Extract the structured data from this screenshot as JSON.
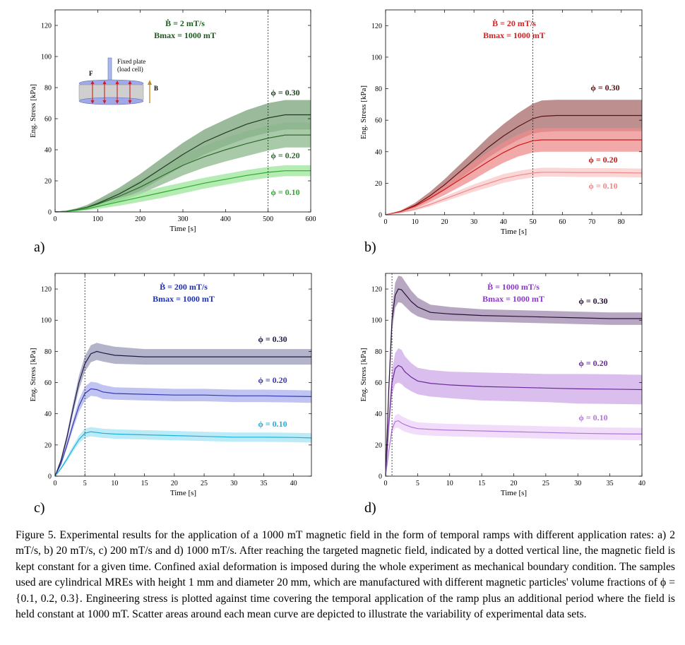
{
  "caption": "Figure 5.  Experimental results for the application of a 1000 mT magnetic field in the form of temporal ramps with different application rates: a) 2 mT/s, b) 20 mT/s, c) 200 mT/s and d) 1000 mT/s. After reaching the targeted magnetic field, indicated by a dotted vertical line, the magnetic field is kept constant for a given time. Confined axial deformation is imposed during the whole experiment as mechanical boundary condition.  The samples used are cylindrical MREs with height 1 mm and diameter 20 mm, which are manufactured with different magnetic particles' volume fractions of ϕ = {0.1, 0.2, 0.3}. Engineering stress is plotted against time covering the temporal application of the ramp plus an additional period where the field is held constant at 1000 mT. Scatter areas around each mean curve are depicted to illustrate the variability of experimental data sets.",
  "inset": {
    "line1": "Fixed plate",
    "line2": "(load cell)",
    "force_label": "F",
    "field_label": "B"
  },
  "chart_data": [
    {
      "panel": "a)",
      "type": "line",
      "rate_label": "Ḃ = 2 mT/s",
      "bmax_label": "Bmax = 1000 mT",
      "xlabel": "Time [s]",
      "ylabel": "Eng. Stress [kPa]",
      "xlim": [
        0,
        600
      ],
      "ylim": [
        0,
        130
      ],
      "xticks": [
        0,
        100,
        200,
        300,
        400,
        500,
        600
      ],
      "yticks": [
        0,
        20,
        40,
        60,
        80,
        100,
        120
      ],
      "ramp_end": 500,
      "annotation_color": "#1e5a1e",
      "series": [
        {
          "name": "ϕ = 0.30",
          "line_color": "#1f3d1f",
          "band_color": "#7aa27a",
          "x": [
            0,
            25,
            50,
            75,
            100,
            150,
            200,
            250,
            300,
            350,
            400,
            450,
            500,
            540,
            580,
            600
          ],
          "y": [
            0,
            0.4,
            1.5,
            3,
            5.5,
            11.5,
            19,
            28,
            37,
            45,
            51,
            56.5,
            60.5,
            62.5,
            62.5,
            62.5
          ],
          "spread": [
            0,
            0.3,
            0.8,
            1.5,
            2.5,
            4,
            5.5,
            6.5,
            7.5,
            8,
            8.5,
            9,
            9.5,
            9.5,
            9.5,
            9.5
          ]
        },
        {
          "name": "ϕ = 0.20",
          "line_color": "#2f6a2f",
          "band_color": "#8cb88c",
          "x": [
            0,
            25,
            50,
            75,
            100,
            150,
            200,
            250,
            300,
            350,
            400,
            450,
            500,
            540,
            580,
            600
          ],
          "y": [
            0,
            0.4,
            1.4,
            2.8,
            5,
            10,
            16,
            23,
            30,
            35.5,
            40,
            44,
            47.5,
            49.5,
            49.5,
            49.5
          ],
          "spread": [
            0,
            0.3,
            0.7,
            1.2,
            2,
            3.5,
            4.5,
            5.5,
            6.5,
            7,
            7.5,
            8,
            8,
            8,
            8,
            8
          ]
        },
        {
          "name": "ϕ = 0.10",
          "line_color": "#2faa2f",
          "band_color": "#9be59b",
          "x": [
            0,
            25,
            50,
            75,
            100,
            150,
            200,
            250,
            300,
            350,
            400,
            450,
            500,
            540,
            580,
            600
          ],
          "y": [
            0,
            0.3,
            1,
            2,
            3.5,
            6.5,
            9.5,
            12.5,
            15.5,
            18.5,
            21,
            23.5,
            25.5,
            26.5,
            26.5,
            26.5
          ],
          "spread": [
            0,
            0.2,
            0.5,
            1,
            1.5,
            2.5,
            3,
            3.5,
            3.5,
            3.5,
            3.5,
            3.5,
            3.5,
            3.5,
            3.5,
            3.5
          ]
        }
      ]
    },
    {
      "panel": "b)",
      "type": "line",
      "rate_label": "Ḃ = 20 mT/s",
      "bmax_label": "Bmax = 1000 mT",
      "xlabel": "Time [s]",
      "ylabel": "Eng. Stress [kPa]",
      "xlim": [
        0,
        87
      ],
      "ylim": [
        0,
        130
      ],
      "xticks": [
        0,
        10,
        20,
        30,
        40,
        50,
        60,
        70,
        80
      ],
      "yticks": [
        0,
        20,
        40,
        60,
        80,
        100,
        120
      ],
      "ramp_end": 50,
      "annotation_color": "#d42020",
      "series": [
        {
          "name": "ϕ = 0.30",
          "line_color": "#5a1414",
          "band_color": "#a86a6a",
          "x": [
            0,
            5,
            10,
            15,
            20,
            25,
            30,
            35,
            40,
            45,
            50,
            53,
            58,
            65,
            75,
            87
          ],
          "y": [
            0,
            2,
            6,
            12,
            19,
            27,
            35,
            43,
            50,
            56,
            61,
            62.5,
            63,
            63,
            63,
            63
          ],
          "spread": [
            0,
            0.6,
            1.5,
            2.5,
            3.5,
            4.5,
            5.5,
            6.5,
            7.5,
            8.5,
            9.5,
            10,
            10,
            10,
            10,
            10
          ]
        },
        {
          "name": "ϕ = 0.20",
          "line_color": "#cc1818",
          "band_color": "#ee8c8c",
          "x": [
            0,
            5,
            10,
            15,
            20,
            25,
            30,
            35,
            40,
            45,
            50,
            53,
            58,
            65,
            75,
            87
          ],
          "y": [
            0,
            2,
            5.5,
            10.5,
            16,
            22,
            28,
            34,
            39.5,
            44,
            47,
            47.5,
            47.5,
            47.5,
            47.5,
            47.5
          ],
          "spread": [
            0,
            0.6,
            1.5,
            2.5,
            3.5,
            4.5,
            5.5,
            6,
            6.5,
            7,
            7.5,
            7.5,
            7.5,
            7.5,
            7.5,
            7.5
          ]
        },
        {
          "name": "ϕ = 0.10",
          "line_color": "#ee8a8a",
          "band_color": "#f8c8c8",
          "x": [
            0,
            5,
            10,
            15,
            20,
            25,
            30,
            35,
            40,
            45,
            50,
            53,
            58,
            65,
            75,
            87
          ],
          "y": [
            0,
            1.5,
            3.5,
            6.5,
            10,
            13.5,
            17,
            20,
            23,
            25,
            26.5,
            27,
            27,
            26.8,
            26.8,
            26.5
          ],
          "spread": [
            0,
            0.4,
            0.8,
            1.2,
            1.6,
            2,
            2.3,
            2.6,
            2.8,
            2.8,
            2.8,
            2.8,
            2.8,
            2.8,
            2.8,
            2.8
          ]
        }
      ]
    },
    {
      "panel": "c)",
      "type": "line",
      "rate_label": "Ḃ = 200 mT/s",
      "bmax_label": "Bmax = 1000 mT",
      "xlabel": "Time [s]",
      "ylabel": "Eng. Stress [kPa]",
      "xlim": [
        0,
        43
      ],
      "ylim": [
        0,
        130
      ],
      "xticks": [
        0,
        5,
        10,
        15,
        20,
        25,
        30,
        35,
        40
      ],
      "yticks": [
        0,
        20,
        40,
        60,
        80,
        100,
        120
      ],
      "ramp_end": 5,
      "annotation_color": "#2030b0",
      "series": [
        {
          "name": "ϕ = 0.30",
          "line_color": "#1a1a4a",
          "band_color": "#9a9ab8",
          "x": [
            0,
            1,
            2,
            3,
            4,
            5,
            6,
            7,
            8,
            10,
            15,
            20,
            25,
            30,
            35,
            40,
            43
          ],
          "y": [
            0,
            10,
            25,
            43,
            60,
            72,
            78.5,
            80,
            79,
            77.5,
            76.5,
            76.5,
            76.5,
            76.5,
            76.5,
            76.5,
            76.5
          ],
          "spread": [
            0,
            1.5,
            2.5,
            3.5,
            4.5,
            5,
            5.5,
            5.5,
            5.5,
            5.5,
            5,
            5,
            5,
            5,
            5,
            5,
            5
          ]
        },
        {
          "name": "ϕ = 0.20",
          "line_color": "#3a3ab0",
          "band_color": "#aab0ee",
          "x": [
            0,
            1,
            2,
            3,
            4,
            5,
            6,
            7,
            8,
            10,
            15,
            20,
            25,
            30,
            35,
            40,
            43
          ],
          "y": [
            0,
            8,
            20,
            33,
            45,
            53,
            56,
            55.5,
            54,
            53,
            52.5,
            52,
            52,
            51.5,
            51.5,
            51.2,
            51
          ],
          "spread": [
            0,
            1,
            2,
            3,
            4,
            4.5,
            4.5,
            4.5,
            4.5,
            4,
            4,
            4,
            4,
            4,
            4,
            4,
            4
          ]
        },
        {
          "name": "ϕ = 0.10",
          "line_color": "#1fb0d8",
          "band_color": "#a4e4f4",
          "x": [
            0,
            1,
            2,
            3,
            4,
            5,
            6,
            7,
            8,
            10,
            15,
            20,
            25,
            30,
            35,
            40,
            43
          ],
          "y": [
            0,
            5,
            11,
            17.5,
            23.5,
            27.5,
            28.5,
            28,
            27.5,
            27,
            26.5,
            26,
            25.5,
            25,
            25,
            24.8,
            24.5
          ],
          "spread": [
            0,
            0.8,
            1.5,
            2,
            2.5,
            3,
            3,
            3,
            3,
            3,
            3,
            3,
            3,
            3,
            3,
            3,
            3
          ]
        }
      ]
    },
    {
      "panel": "d)",
      "type": "line",
      "rate_label": "Ḃ = 1000 mT/s",
      "bmax_label": "Bmax = 1000 mT",
      "xlabel": "Time [s]",
      "ylabel": "Eng. Stress [kPa]",
      "xlim": [
        0,
        40
      ],
      "ylim": [
        0,
        130
      ],
      "xticks": [
        0,
        5,
        10,
        15,
        20,
        25,
        30,
        35,
        40
      ],
      "yticks": [
        0,
        20,
        40,
        60,
        80,
        100,
        120
      ],
      "ramp_end": 1,
      "annotation_color": "#8a38c8",
      "series": [
        {
          "name": "ϕ = 0.30",
          "line_color": "#2a0f3a",
          "band_color": "#a08aae",
          "x": [
            0,
            0.5,
            1,
            1.5,
            2,
            2.5,
            3,
            4,
            5,
            7,
            10,
            15,
            20,
            25,
            30,
            35,
            40
          ],
          "y": [
            0,
            55,
            100,
            116,
            120,
            119.5,
            117,
            112,
            108.5,
            105,
            104,
            103,
            102.5,
            102,
            101.5,
            101,
            101
          ],
          "spread": [
            0,
            5,
            7,
            8,
            8.5,
            8.5,
            8,
            7,
            6,
            5,
            4.5,
            4,
            4,
            4,
            4,
            4,
            4
          ]
        },
        {
          "name": "ϕ = 0.20",
          "line_color": "#6a2a9a",
          "band_color": "#cda8e8",
          "x": [
            0,
            0.5,
            1,
            1.5,
            2,
            2.5,
            3,
            4,
            5,
            7,
            10,
            15,
            20,
            25,
            30,
            35,
            40
          ],
          "y": [
            0,
            33,
            60,
            69,
            71,
            70,
            67,
            63.5,
            61,
            59.5,
            58.5,
            57.5,
            57,
            56.5,
            56,
            55.8,
            55.5
          ],
          "spread": [
            0,
            6,
            8,
            10,
            11,
            11,
            10,
            9,
            8.5,
            8.5,
            8.5,
            9,
            9,
            9,
            9.5,
            9.5,
            9.5
          ]
        },
        {
          "name": "ϕ = 0.10",
          "line_color": "#b078d8",
          "band_color": "#ecd2f8",
          "x": [
            0,
            0.5,
            1,
            1.5,
            2,
            2.5,
            3,
            4,
            5,
            7,
            10,
            15,
            20,
            25,
            30,
            35,
            40
          ],
          "y": [
            0,
            16,
            30,
            35,
            35.5,
            34,
            33,
            31.5,
            30.5,
            30,
            29.5,
            29,
            28.5,
            28,
            27.5,
            27.2,
            27
          ],
          "spread": [
            0,
            2,
            3,
            4,
            4.5,
            4.5,
            4.5,
            4.2,
            4,
            4,
            4,
            4,
            4,
            4,
            4,
            4,
            4
          ]
        }
      ]
    }
  ]
}
